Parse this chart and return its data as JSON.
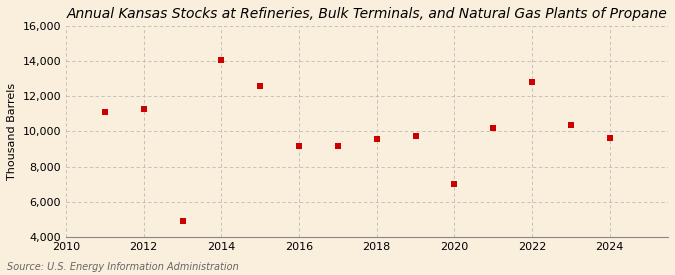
{
  "title": "Annual Kansas Stocks at Refineries, Bulk Terminals, and Natural Gas Plants of Propane",
  "ylabel": "Thousand Barrels",
  "source": "Source: U.S. Energy Information Administration",
  "background_color": "#faeedd",
  "years": [
    2011,
    2012,
    2013,
    2014,
    2015,
    2016,
    2017,
    2018,
    2019,
    2020,
    2021,
    2022,
    2023,
    2024
  ],
  "values": [
    11100,
    11300,
    4900,
    14100,
    12600,
    9200,
    9150,
    9600,
    9750,
    7000,
    10200,
    12800,
    10350,
    9650
  ],
  "marker_color": "#cc0000",
  "marker": "s",
  "marker_size": 4,
  "xlim": [
    2010,
    2025.5
  ],
  "ylim": [
    4000,
    16000
  ],
  "yticks": [
    4000,
    6000,
    8000,
    10000,
    12000,
    14000,
    16000
  ],
  "xticks": [
    2010,
    2012,
    2014,
    2016,
    2018,
    2020,
    2022,
    2024
  ],
  "grid_color": "#bbbbbb",
  "grid_style": "--",
  "title_fontsize": 10,
  "axis_fontsize": 8,
  "tick_fontsize": 8,
  "source_fontsize": 7
}
